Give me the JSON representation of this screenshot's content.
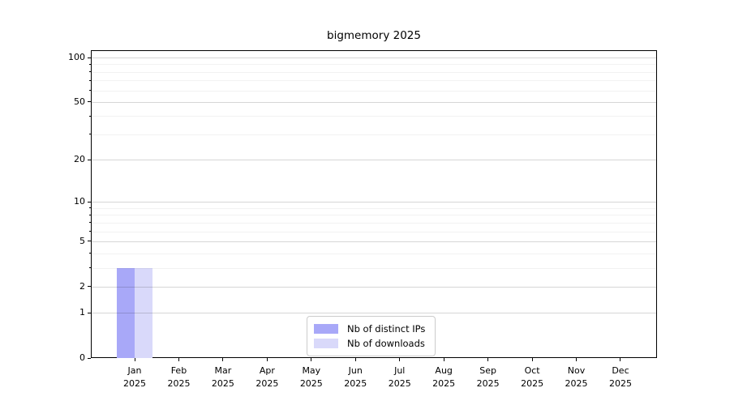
{
  "chart_data": {
    "type": "bar",
    "title": "bigmemory 2025",
    "categories": [
      "Jan",
      "Feb",
      "Mar",
      "Apr",
      "May",
      "Jun",
      "Jul",
      "Aug",
      "Sep",
      "Oct",
      "Nov",
      "Dec"
    ],
    "x_tick_year": "2025",
    "series": [
      {
        "name": "Nb of distinct IPs",
        "color": "#a8a8f8",
        "values": [
          3,
          0,
          0,
          0,
          0,
          0,
          0,
          0,
          0,
          0,
          0,
          0
        ]
      },
      {
        "name": "Nb of downloads",
        "color": "#d9d9fa",
        "values": [
          3,
          0,
          0,
          0,
          0,
          0,
          0,
          0,
          0,
          0,
          0,
          0
        ]
      }
    ],
    "xlabel": "",
    "ylabel": "",
    "yscale": "log1p",
    "ylim": [
      0,
      112
    ],
    "y_major_ticks": [
      0,
      1,
      2,
      5,
      10,
      20,
      50,
      100
    ],
    "y_minor_gridlines": [
      3,
      4,
      6,
      7,
      8,
      9,
      30,
      40,
      60,
      70,
      80,
      90
    ],
    "grid": "horizontal, drawn above bars",
    "legend_position": "lower center",
    "colors": {
      "background": "#ffffff",
      "spine": "#000000",
      "grid_major": "#d6d6d6",
      "grid_minor": "#f3f3f3",
      "text": "#000000",
      "legend_border": "#cccccc"
    }
  }
}
